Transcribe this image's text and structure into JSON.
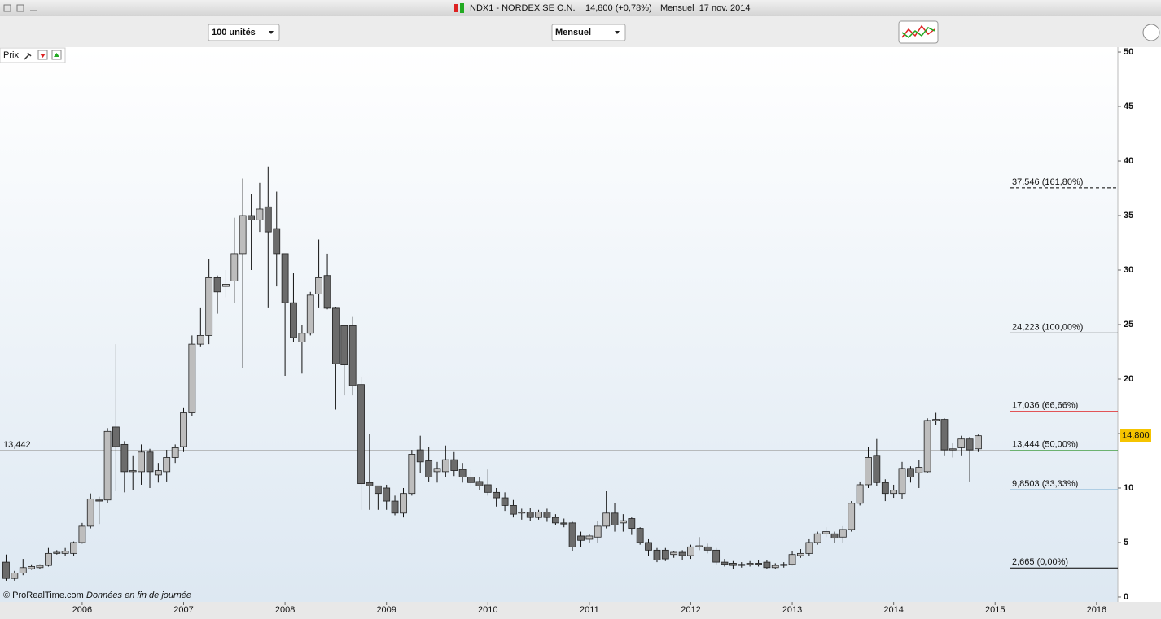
{
  "window": {
    "title": "NDX1 - NORDEX SE O.N.",
    "quote": "14,800 (+0,78%)",
    "period_date": "Mensuel  17 nov. 2014"
  },
  "toolbar": {
    "units": "100 unités",
    "period": "Mensuel",
    "panel": "Prix"
  },
  "footer": {
    "source": "© ProRealTime.com",
    "note": "Données en fin de journée"
  },
  "chart_data": {
    "type": "candlestick",
    "up_color": "#bdbdbd",
    "down_color": "#6b6b6b",
    "xlim": [
      2005.19,
      2016.21
    ],
    "xticks": [
      2006,
      2007,
      2008,
      2009,
      2010,
      2011,
      2012,
      2013,
      2014,
      2015,
      2016
    ],
    "ylim": [
      -0.45,
      50.45
    ],
    "yticks": [
      0,
      5,
      10,
      15,
      20,
      25,
      30,
      35,
      40,
      45,
      50
    ],
    "x": [
      2005.25,
      2005.333,
      2005.417,
      2005.5,
      2005.583,
      2005.667,
      2005.75,
      2005.833,
      2005.917,
      2006,
      2006.083,
      2006.167,
      2006.25,
      2006.333,
      2006.417,
      2006.5,
      2006.583,
      2006.667,
      2006.75,
      2006.833,
      2006.917,
      2007,
      2007.083,
      2007.167,
      2007.25,
      2007.333,
      2007.417,
      2007.5,
      2007.583,
      2007.667,
      2007.75,
      2007.833,
      2007.917,
      2008,
      2008.083,
      2008.167,
      2008.25,
      2008.333,
      2008.417,
      2008.5,
      2008.583,
      2008.667,
      2008.75,
      2008.833,
      2008.917,
      2009,
      2009.083,
      2009.167,
      2009.25,
      2009.333,
      2009.417,
      2009.5,
      2009.583,
      2009.667,
      2009.75,
      2009.833,
      2009.917,
      2010,
      2010.083,
      2010.167,
      2010.25,
      2010.333,
      2010.417,
      2010.5,
      2010.583,
      2010.667,
      2010.75,
      2010.833,
      2010.917,
      2011,
      2011.083,
      2011.167,
      2011.25,
      2011.333,
      2011.417,
      2011.5,
      2011.583,
      2011.667,
      2011.75,
      2011.833,
      2011.917,
      2012,
      2012.083,
      2012.167,
      2012.25,
      2012.333,
      2012.417,
      2012.5,
      2012.583,
      2012.667,
      2012.75,
      2012.833,
      2012.917,
      2013,
      2013.083,
      2013.167,
      2013.25,
      2013.333,
      2013.417,
      2013.5,
      2013.583,
      2013.667,
      2013.75,
      2013.833,
      2013.917,
      2014,
      2014.083,
      2014.167,
      2014.25,
      2014.333,
      2014.417,
      2014.5,
      2014.583,
      2014.667,
      2014.75,
      2014.833
    ],
    "open": [
      3.2,
      1.7,
      2.2,
      2.6,
      2.7,
      2.9,
      4.0,
      4.0,
      4.0,
      5.0,
      6.5,
      8.9,
      8.9,
      15.6,
      14.0,
      11.5,
      11.5,
      13.3,
      11.2,
      11.5,
      12.8,
      13.8,
      16.9,
      23.2,
      24.0,
      29.3,
      28.5,
      29.0,
      31.5,
      35.0,
      34.6,
      35.8,
      33.8,
      31.5,
      27.0,
      23.4,
      24.2,
      27.8,
      29.5,
      26.5,
      24.9,
      24.9,
      19.5,
      10.5,
      10.2,
      10.0,
      8.8,
      7.7,
      9.5,
      13.5,
      12.5,
      11.5,
      11.5,
      12.6,
      11.7,
      11.0,
      10.6,
      10.3,
      9.6,
      9.1,
      8.4,
      7.7,
      7.8,
      7.3,
      7.8,
      7.3,
      6.8,
      6.8,
      5.6,
      5.3,
      5.5,
      6.5,
      7.7,
      6.8,
      7.2,
      6.3,
      5.0,
      4.3,
      4.3,
      3.9,
      4.1,
      3.8,
      4.6,
      4.6,
      4.3,
      3.2,
      3.1,
      2.9,
      3.0,
      3.1,
      3.2,
      2.7,
      2.9,
      3.0,
      3.8,
      4.0,
      5.0,
      5.8,
      5.8,
      5.5,
      6.2,
      8.6,
      10.3,
      13.0,
      10.5,
      9.5,
      9.5,
      11.8,
      11.4,
      11.5,
      16.2,
      16.3,
      13.5,
      13.7,
      14.5,
      13.6
    ],
    "high": [
      3.9,
      2.4,
      3.5,
      3.0,
      3.0,
      4.5,
      4.3,
      4.5,
      5.1,
      6.8,
      9.5,
      9.2,
      15.5,
      23.2,
      14.3,
      13.0,
      14.0,
      13.6,
      12.3,
      13.5,
      14.0,
      17.4,
      24.0,
      26.5,
      31.0,
      29.5,
      30.0,
      34.8,
      38.4,
      37.0,
      38.0,
      39.5,
      37.2,
      31.5,
      29.7,
      25.0,
      28.0,
      32.8,
      31.5,
      26.6,
      25.0,
      25.7,
      20.2,
      15.0,
      10.0,
      10.3,
      9.3,
      10.0,
      13.5,
      14.8,
      13.8,
      12.4,
      13.9,
      13.3,
      12.3,
      11.7,
      11.0,
      11.7,
      10.0,
      9.6,
      8.9,
      8.1,
      8.2,
      8.0,
      8.1,
      7.6,
      7.2,
      6.9,
      6.0,
      5.8,
      7.0,
      9.7,
      8.6,
      7.6,
      7.3,
      6.4,
      5.3,
      4.5,
      4.5,
      4.2,
      4.3,
      4.8,
      5.5,
      4.9,
      4.5,
      3.5,
      3.3,
      3.2,
      3.3,
      3.4,
      3.4,
      3.1,
      3.2,
      4.2,
      4.4,
      5.3,
      6.0,
      6.4,
      6.0,
      6.5,
      8.8,
      10.6,
      13.8,
      14.5,
      10.8,
      10.3,
      12.4,
      12.0,
      12.6,
      16.4,
      16.9,
      16.4,
      14.1,
      14.8,
      14.7,
      14.9
    ],
    "low": [
      1.5,
      1.5,
      2.0,
      2.5,
      2.6,
      2.8,
      3.9,
      3.8,
      3.8,
      4.9,
      6.3,
      6.7,
      8.6,
      9.7,
      9.6,
      9.8,
      10.3,
      10.0,
      10.5,
      10.6,
      12.3,
      13.3,
      16.6,
      23.0,
      23.2,
      26.0,
      27.5,
      27.0,
      21.0,
      30.0,
      33.5,
      26.5,
      28.5,
      20.3,
      23.4,
      20.5,
      24.0,
      26.5,
      26.4,
      17.2,
      18.5,
      18.5,
      8.0,
      8.0,
      8.0,
      8.0,
      7.5,
      7.3,
      9.3,
      11.4,
      10.6,
      10.5,
      11.0,
      11.1,
      10.5,
      10.1,
      9.8,
      9.3,
      8.3,
      7.9,
      7.3,
      7.1,
      7.0,
      7.1,
      6.9,
      6.6,
      6.4,
      4.2,
      4.6,
      5.0,
      5.0,
      6.3,
      6.0,
      6.0,
      5.7,
      4.8,
      3.8,
      3.2,
      3.3,
      3.6,
      3.4,
      3.5,
      4.3,
      4.0,
      3.0,
      2.8,
      2.6,
      2.7,
      2.8,
      2.8,
      2.6,
      2.6,
      2.7,
      2.9,
      3.6,
      3.8,
      4.8,
      5.5,
      5.0,
      5.0,
      6.0,
      8.4,
      10.0,
      10.2,
      8.8,
      9.1,
      9.0,
      10.5,
      10.0,
      11.4,
      15.8,
      13.0,
      12.8,
      13.0,
      10.6,
      13.3
    ],
    "close": [
      1.7,
      2.2,
      2.7,
      2.8,
      2.9,
      4.0,
      4.1,
      4.2,
      5.0,
      6.5,
      9.0,
      8.8,
      15.2,
      13.8,
      11.5,
      11.6,
      13.3,
      11.5,
      11.6,
      12.8,
      13.7,
      16.9,
      23.2,
      24.0,
      29.3,
      28.0,
      28.7,
      31.5,
      35.0,
      34.6,
      35.6,
      33.5,
      31.5,
      27.0,
      23.8,
      24.2,
      27.7,
      29.3,
      26.5,
      21.4,
      21.3,
      19.4,
      10.4,
      10.2,
      9.5,
      8.8,
      7.7,
      9.5,
      13.1,
      12.4,
      11.0,
      11.8,
      12.6,
      11.6,
      11.0,
      10.5,
      10.2,
      9.6,
      9.1,
      8.4,
      7.6,
      7.8,
      7.3,
      7.8,
      7.3,
      6.8,
      6.7,
      4.6,
      5.2,
      5.6,
      6.5,
      7.7,
      6.6,
      7.0,
      6.3,
      5.0,
      4.3,
      3.4,
      3.5,
      4.1,
      3.8,
      4.6,
      4.7,
      4.3,
      3.2,
      3.0,
      2.9,
      3.0,
      3.1,
      3.0,
      2.7,
      2.9,
      3.0,
      3.9,
      4.0,
      5.0,
      5.8,
      6.0,
      5.4,
      6.2,
      8.6,
      10.3,
      12.8,
      10.5,
      9.5,
      9.8,
      11.8,
      11.0,
      11.9,
      16.2,
      16.3,
      13.5,
      13.6,
      14.5,
      13.5,
      14.8
    ],
    "reference_line": {
      "value": 13.442,
      "label": "13,442",
      "color": "#9a9a9a"
    },
    "last_price": {
      "value": 14.8,
      "label": "14,800",
      "color": "#f5c400"
    },
    "levels": [
      {
        "value": 37.546,
        "label": "37,546 (161,80%)",
        "color": "#000000",
        "dashed": true
      },
      {
        "value": 24.223,
        "label": "24,223 (100,00%)",
        "color": "#000000",
        "dashed": false
      },
      {
        "value": 17.036,
        "label": "17,036 (66,66%)",
        "color": "#e02020",
        "dashed": false
      },
      {
        "value": 13.444,
        "label": "13,444 (50,00%)",
        "color": "#2e9a2e",
        "dashed": false
      },
      {
        "value": 9.8503,
        "label": "9,8503 (33,33%)",
        "color": "#7ab0d4",
        "dashed": false
      },
      {
        "value": 2.665,
        "label": "2,665 (0,00%)",
        "color": "#000000",
        "dashed": false
      }
    ]
  }
}
